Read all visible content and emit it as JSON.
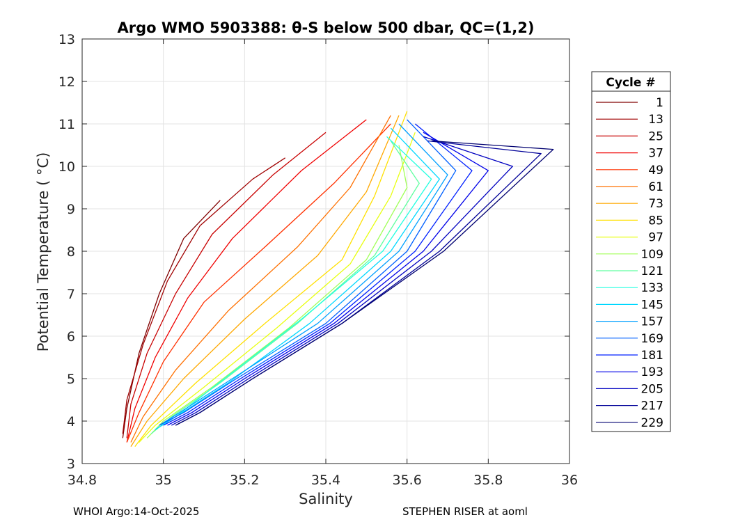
{
  "chart_data": {
    "type": "line",
    "title": "Argo WMO 5903388: θ-S below 500 dbar,  QC=(1,2)",
    "xlabel": "Salinity",
    "ylabel": "Potential Temperature ( °C)",
    "xlim": [
      34.8,
      36
    ],
    "ylim": [
      3,
      13
    ],
    "xticks": [
      "34.8",
      "35",
      "35.2",
      "35.4",
      "35.6",
      "35.8",
      "36"
    ],
    "yticks": [
      "3",
      "4",
      "5",
      "6",
      "7",
      "8",
      "9",
      "10",
      "11",
      "12",
      "13"
    ],
    "grid": true,
    "legend": {
      "title": "Cycle #",
      "placement": "outside-right",
      "entries": [
        {
          "label": "1",
          "color": "#800000"
        },
        {
          "label": "13",
          "color": "#a00000"
        },
        {
          "label": "25",
          "color": "#c80000"
        },
        {
          "label": "37",
          "color": "#f00000"
        },
        {
          "label": "49",
          "color": "#ff3000"
        },
        {
          "label": "61",
          "color": "#ff7000"
        },
        {
          "label": "73",
          "color": "#ffa800"
        },
        {
          "label": "85",
          "color": "#ffe000"
        },
        {
          "label": "97",
          "color": "#e8ff10"
        },
        {
          "label": "109",
          "color": "#a0ff58"
        },
        {
          "label": "121",
          "color": "#60ffa0"
        },
        {
          "label": "133",
          "color": "#20ffe0"
        },
        {
          "label": "145",
          "color": "#00d8ff"
        },
        {
          "label": "157",
          "color": "#00a0ff"
        },
        {
          "label": "169",
          "color": "#0060ff"
        },
        {
          "label": "181",
          "color": "#0020ff"
        },
        {
          "label": "193",
          "color": "#0000e8"
        },
        {
          "label": "205",
          "color": "#0000c0"
        },
        {
          "label": "217",
          "color": "#000098"
        },
        {
          "label": "229",
          "color": "#000070"
        }
      ]
    },
    "series": [
      {
        "name": "1",
        "x": [
          34.9,
          34.91,
          34.94,
          34.99,
          35.05,
          35.14
        ],
        "y": [
          3.6,
          4.3,
          5.6,
          7.0,
          8.3,
          9.2
        ]
      },
      {
        "name": "13",
        "x": [
          34.9,
          34.91,
          34.95,
          35.01,
          35.09,
          35.22,
          35.3
        ],
        "y": [
          3.7,
          4.5,
          5.8,
          7.3,
          8.6,
          9.7,
          10.2
        ]
      },
      {
        "name": "25",
        "x": [
          34.91,
          34.92,
          34.96,
          35.03,
          35.12,
          35.27,
          35.4
        ],
        "y": [
          3.6,
          4.4,
          5.6,
          7.0,
          8.4,
          9.8,
          10.8
        ]
      },
      {
        "name": "37",
        "x": [
          34.91,
          34.93,
          34.98,
          35.06,
          35.17,
          35.34,
          35.5
        ],
        "y": [
          3.5,
          4.3,
          5.5,
          6.9,
          8.3,
          9.9,
          11.1
        ]
      },
      {
        "name": "49",
        "x": [
          34.91,
          34.94,
          35.0,
          35.1,
          35.25,
          35.42,
          35.56
        ],
        "y": [
          3.5,
          4.2,
          5.4,
          6.8,
          8.1,
          9.6,
          11.0
        ]
      },
      {
        "name": "61",
        "x": [
          34.92,
          34.95,
          35.03,
          35.16,
          35.33,
          35.46,
          35.56
        ],
        "y": [
          3.5,
          4.1,
          5.2,
          6.6,
          8.1,
          9.5,
          11.2
        ]
      },
      {
        "name": "73",
        "x": [
          34.92,
          34.96,
          35.05,
          35.2,
          35.38,
          35.5,
          35.58
        ],
        "y": [
          3.4,
          4.0,
          5.0,
          6.4,
          7.9,
          9.4,
          11.2
        ]
      },
      {
        "name": "85",
        "x": [
          34.93,
          34.97,
          35.08,
          35.25,
          35.44,
          35.52,
          35.6
        ],
        "y": [
          3.4,
          3.9,
          4.9,
          6.3,
          7.8,
          9.3,
          11.3
        ]
      },
      {
        "name": "97",
        "x": [
          34.94,
          34.98,
          35.1,
          35.28,
          35.46,
          35.56,
          35.62
        ],
        "y": [
          3.5,
          3.9,
          4.8,
          6.2,
          7.7,
          9.3,
          10.8
        ]
      },
      {
        "name": "109",
        "x": [
          34.96,
          35.0,
          35.12,
          35.31,
          35.5,
          35.6,
          35.58
        ],
        "y": [
          3.6,
          4.0,
          4.8,
          6.2,
          7.8,
          9.5,
          10.5
        ]
      },
      {
        "name": "121",
        "x": [
          34.97,
          35.02,
          35.14,
          35.33,
          35.52,
          35.63,
          35.56
        ],
        "y": [
          3.7,
          4.1,
          4.9,
          6.3,
          7.9,
          9.6,
          10.6
        ]
      },
      {
        "name": "133",
        "x": [
          34.98,
          35.03,
          35.15,
          35.34,
          35.54,
          35.66,
          35.55
        ],
        "y": [
          3.8,
          4.1,
          5.0,
          6.4,
          8.0,
          9.7,
          10.7
        ]
      },
      {
        "name": "145",
        "x": [
          34.98,
          35.03,
          35.16,
          35.36,
          35.56,
          35.68,
          35.56
        ],
        "y": [
          3.8,
          4.1,
          4.9,
          6.3,
          8.0,
          9.7,
          10.9
        ]
      },
      {
        "name": "157",
        "x": [
          34.99,
          35.04,
          35.17,
          35.38,
          35.58,
          35.7,
          35.58
        ],
        "y": [
          3.9,
          4.2,
          5.0,
          6.3,
          8.0,
          9.8,
          11.0
        ]
      },
      {
        "name": "169",
        "x": [
          34.99,
          35.05,
          35.18,
          35.4,
          35.6,
          35.72,
          35.6
        ],
        "y": [
          3.9,
          4.2,
          5.0,
          6.3,
          8.0,
          9.9,
          11.1
        ]
      },
      {
        "name": "181",
        "x": [
          35.0,
          35.06,
          35.19,
          35.41,
          35.62,
          35.76,
          35.62
        ],
        "y": [
          3.9,
          4.2,
          5.0,
          6.3,
          8.0,
          9.9,
          11.0
        ]
      },
      {
        "name": "193",
        "x": [
          35.01,
          35.07,
          35.2,
          35.42,
          35.64,
          35.8,
          35.64
        ],
        "y": [
          3.9,
          4.2,
          5.0,
          6.3,
          8.0,
          9.9,
          10.8
        ]
      },
      {
        "name": "205",
        "x": [
          35.02,
          35.08,
          35.21,
          35.43,
          35.66,
          35.86,
          35.64
        ],
        "y": [
          3.9,
          4.2,
          5.0,
          6.3,
          8.0,
          10.0,
          10.7
        ]
      },
      {
        "name": "217",
        "x": [
          35.03,
          35.09,
          35.22,
          35.44,
          35.68,
          35.93,
          35.65
        ],
        "y": [
          3.9,
          4.2,
          5.0,
          6.3,
          8.0,
          10.3,
          10.6
        ]
      },
      {
        "name": "229",
        "x": [
          35.03,
          35.09,
          35.22,
          35.44,
          35.69,
          35.96,
          35.66
        ],
        "y": [
          3.9,
          4.2,
          5.0,
          6.3,
          8.0,
          10.4,
          10.6
        ]
      }
    ]
  },
  "footer": {
    "left": "WHOI Argo:14-Oct-2025",
    "right": "STEPHEN RISER at aoml"
  }
}
